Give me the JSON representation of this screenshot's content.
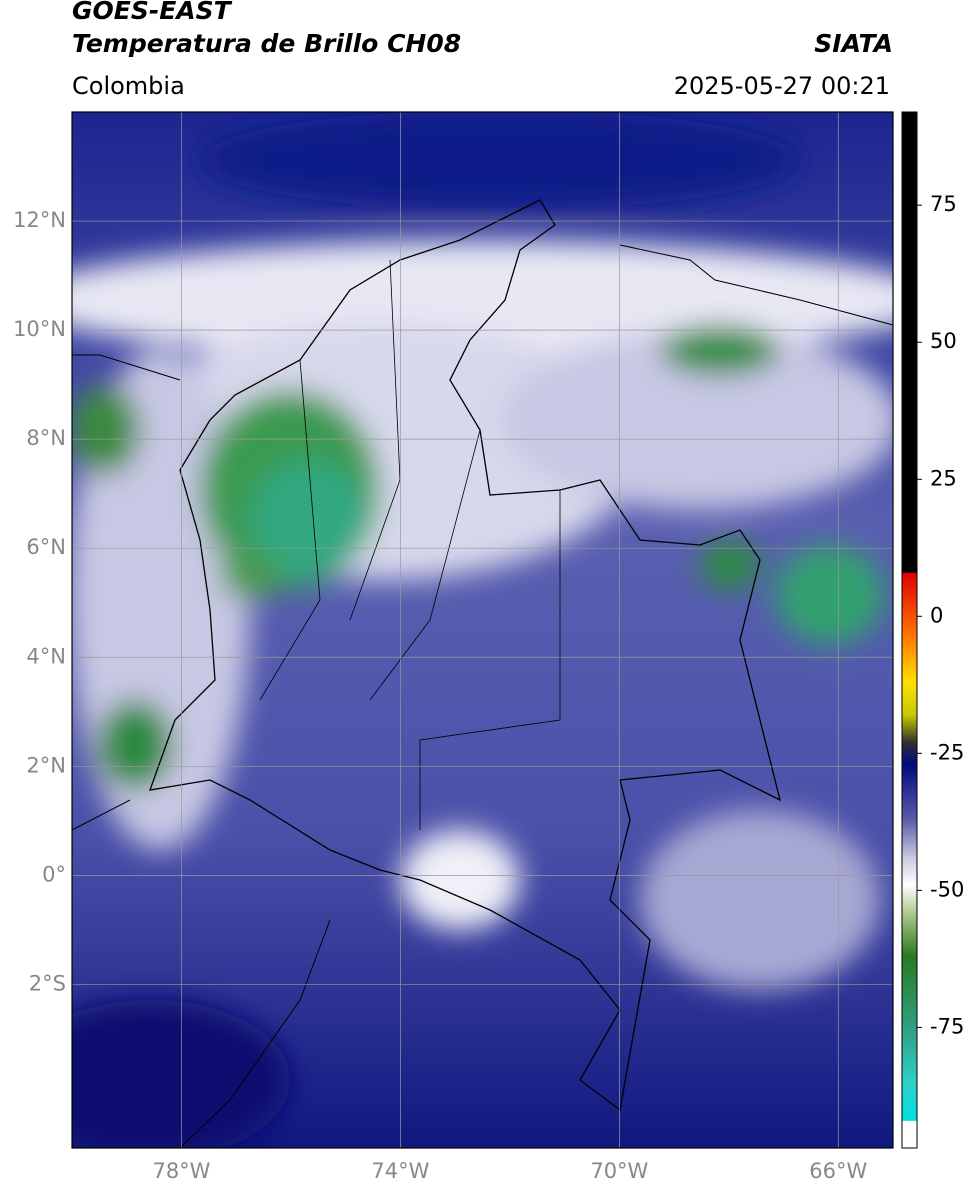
{
  "header": {
    "title": "GOES-EAST",
    "subtitle": "Temperatura de Brillo CH08",
    "source": "SIATA",
    "region": "Colombia",
    "timestamp": "2025-05-27 00:21"
  },
  "map": {
    "lonlim": [
      -80,
      -65
    ],
    "latlim": [
      -5,
      14
    ],
    "lat_ticks": [
      {
        "value": 12,
        "label": "12°N"
      },
      {
        "value": 10,
        "label": "10°N"
      },
      {
        "value": 8,
        "label": "8°N"
      },
      {
        "value": 6,
        "label": "6°N"
      },
      {
        "value": 4,
        "label": "4°N"
      },
      {
        "value": 2,
        "label": "2°N"
      },
      {
        "value": 0,
        "label": "0°"
      },
      {
        "value": -2,
        "label": "2°S"
      }
    ],
    "lon_ticks": [
      {
        "value": -78,
        "label": "78°W"
      },
      {
        "value": -74,
        "label": "74°W"
      },
      {
        "value": -70,
        "label": "70°W"
      },
      {
        "value": -66,
        "label": "66°W"
      }
    ],
    "grid": true
  },
  "colorbar": {
    "lim": [
      -97,
      92
    ],
    "ticks": [
      75,
      50,
      25,
      0,
      -25,
      -50,
      -75
    ],
    "stops": [
      {
        "value": 92,
        "color": "#000000"
      },
      {
        "value": 8,
        "color": "#000000"
      },
      {
        "value": 7.9,
        "color": "#e00000"
      },
      {
        "value": -3,
        "color": "#ff7000"
      },
      {
        "value": -12,
        "color": "#ffe000"
      },
      {
        "value": -18,
        "color": "#c8c800"
      },
      {
        "value": -23,
        "color": "#303030"
      },
      {
        "value": -27,
        "color": "#000a80"
      },
      {
        "value": -37,
        "color": "#5a5aa8"
      },
      {
        "value": -44,
        "color": "#c8c8e0"
      },
      {
        "value": -49,
        "color": "#ffffff"
      },
      {
        "value": -55,
        "color": "#a0c080"
      },
      {
        "value": -62,
        "color": "#2a7a20"
      },
      {
        "value": -75,
        "color": "#30a080"
      },
      {
        "value": -85,
        "color": "#30d0c8"
      },
      {
        "value": -92,
        "color": "#00e0e0"
      },
      {
        "value": -92.1,
        "color": "#ffffff"
      },
      {
        "value": -97,
        "color": "#ffffff"
      }
    ]
  }
}
